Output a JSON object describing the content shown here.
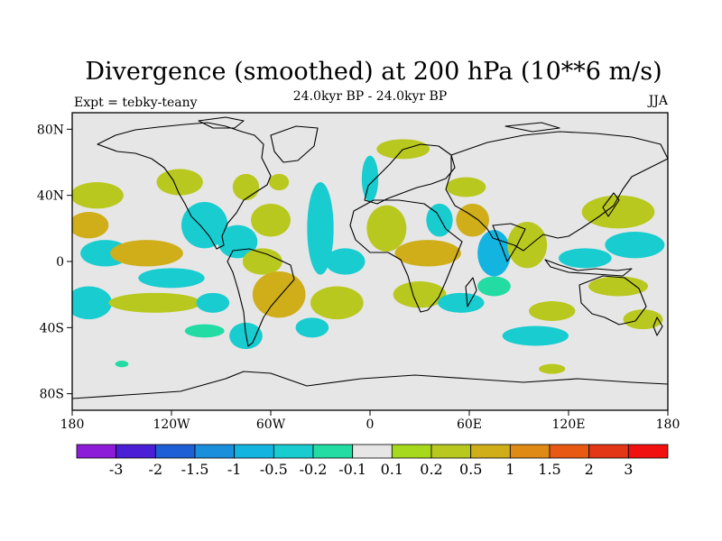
{
  "chart_data": {
    "type": "heatmap",
    "title": "Divergence (smoothed) at 200 hPa (10**6 m/s)",
    "left_label": "Expt = tebky-teany",
    "center_label": "24.0kyr BP - 24.0kyr BP",
    "right_label": "JJA",
    "x_ticks": [
      "180",
      "120W",
      "60W",
      "0",
      "60E",
      "120E",
      "180"
    ],
    "x_tick_values": [
      -180,
      -120,
      -60,
      0,
      60,
      120,
      180
    ],
    "y_ticks": [
      "80N",
      "40N",
      "0",
      "40S",
      "80S"
    ],
    "y_tick_values": [
      80,
      40,
      0,
      -40,
      -80
    ],
    "xlim": [
      -180,
      180
    ],
    "ylim": [
      -90,
      90
    ],
    "colorbar": {
      "levels": [
        "-3",
        "-2",
        "-1.5",
        "-1",
        "-0.5",
        "-0.2",
        "-0.1",
        "0.1",
        "0.2",
        "0.5",
        "1",
        "1.5",
        "2",
        "3"
      ],
      "colors": [
        "#8c1cd8",
        "#4a1fd6",
        "#1f5fd6",
        "#1a8fdc",
        "#14b4e0",
        "#18ccd0",
        "#22dca4",
        "#e6e6e6",
        "#a6d81c",
        "#b9c81e",
        "#cfae1a",
        "#e08a16",
        "#e85a14",
        "#e23616",
        "#f01010"
      ]
    },
    "regions": [
      {
        "lon": -115,
        "lat": 48,
        "rx": 14,
        "ry": 8,
        "value": 0.3
      },
      {
        "lon": -75,
        "lat": 45,
        "rx": 8,
        "ry": 8,
        "value": 0.3
      },
      {
        "lon": -55,
        "lat": 48,
        "rx": 6,
        "ry": 5,
        "value": 0.3
      },
      {
        "lon": 20,
        "lat": 68,
        "rx": 16,
        "ry": 6,
        "value": 0.2
      },
      {
        "lon": 0,
        "lat": 50,
        "rx": 5,
        "ry": 14,
        "value": -0.3
      },
      {
        "lon": 58,
        "lat": 45,
        "rx": 12,
        "ry": 6,
        "value": 0.3
      },
      {
        "lon": 42,
        "lat": 25,
        "rx": 8,
        "ry": 10,
        "value": -0.3
      },
      {
        "lon": -165,
        "lat": 40,
        "rx": 16,
        "ry": 8,
        "value": 0.3
      },
      {
        "lon": -170,
        "lat": 22,
        "rx": 12,
        "ry": 8,
        "value": 0.5
      },
      {
        "lon": -160,
        "lat": 5,
        "rx": 15,
        "ry": 8,
        "value": -0.3
      },
      {
        "lon": -170,
        "lat": -25,
        "rx": 14,
        "ry": 10,
        "value": -0.3
      },
      {
        "lon": -135,
        "lat": 5,
        "rx": 22,
        "ry": 8,
        "value": 0.7
      },
      {
        "lon": -120,
        "lat": -10,
        "rx": 20,
        "ry": 6,
        "value": -0.5
      },
      {
        "lon": -130,
        "lat": -25,
        "rx": 28,
        "ry": 6,
        "value": 0.3
      },
      {
        "lon": -100,
        "lat": 22,
        "rx": 14,
        "ry": 14,
        "value": -0.3
      },
      {
        "lon": -95,
        "lat": -25,
        "rx": 10,
        "ry": 6,
        "value": -0.3
      },
      {
        "lon": -80,
        "lat": 12,
        "rx": 12,
        "ry": 10,
        "value": -0.3
      },
      {
        "lon": -60,
        "lat": 25,
        "rx": 12,
        "ry": 10,
        "value": 0.3
      },
      {
        "lon": -65,
        "lat": 0,
        "rx": 12,
        "ry": 8,
        "value": 0.3
      },
      {
        "lon": -55,
        "lat": -20,
        "rx": 16,
        "ry": 14,
        "value": 0.6
      },
      {
        "lon": -75,
        "lat": -45,
        "rx": 10,
        "ry": 8,
        "value": -0.3
      },
      {
        "lon": -30,
        "lat": 20,
        "rx": 8,
        "ry": 28,
        "value": -0.3
      },
      {
        "lon": -15,
        "lat": 0,
        "rx": 12,
        "ry": 8,
        "value": -0.4
      },
      {
        "lon": -20,
        "lat": -25,
        "rx": 16,
        "ry": 10,
        "value": 0.3
      },
      {
        "lon": -35,
        "lat": -40,
        "rx": 10,
        "ry": 6,
        "value": -0.3
      },
      {
        "lon": 10,
        "lat": 20,
        "rx": 12,
        "ry": 14,
        "value": 0.3
      },
      {
        "lon": 35,
        "lat": 5,
        "rx": 20,
        "ry": 8,
        "value": 0.7
      },
      {
        "lon": 30,
        "lat": -20,
        "rx": 16,
        "ry": 8,
        "value": 0.3
      },
      {
        "lon": 55,
        "lat": -25,
        "rx": 14,
        "ry": 6,
        "value": -0.3
      },
      {
        "lon": 75,
        "lat": -15,
        "rx": 10,
        "ry": 6,
        "value": -0.2
      },
      {
        "lon": 75,
        "lat": 5,
        "rx": 10,
        "ry": 14,
        "value": -0.6
      },
      {
        "lon": 62,
        "lat": 25,
        "rx": 10,
        "ry": 10,
        "value": 0.5
      },
      {
        "lon": 95,
        "lat": 10,
        "rx": 12,
        "ry": 14,
        "value": 0.4
      },
      {
        "lon": 130,
        "lat": 2,
        "rx": 16,
        "ry": 6,
        "value": -0.4
      },
      {
        "lon": 150,
        "lat": 30,
        "rx": 22,
        "ry": 10,
        "value": 0.3
      },
      {
        "lon": 160,
        "lat": 10,
        "rx": 18,
        "ry": 8,
        "value": -0.3
      },
      {
        "lon": 150,
        "lat": -15,
        "rx": 18,
        "ry": 6,
        "value": 0.3
      },
      {
        "lon": 110,
        "lat": -30,
        "rx": 14,
        "ry": 6,
        "value": 0.3
      },
      {
        "lon": 100,
        "lat": -45,
        "rx": 20,
        "ry": 6,
        "value": -0.3
      },
      {
        "lon": 165,
        "lat": -35,
        "rx": 12,
        "ry": 6,
        "value": 0.3
      },
      {
        "lon": 110,
        "lat": -65,
        "rx": 8,
        "ry": 3,
        "value": 0.2
      },
      {
        "lon": -150,
        "lat": -62,
        "rx": 4,
        "ry": 2,
        "value": -0.2
      },
      {
        "lon": -100,
        "lat": -42,
        "rx": 12,
        "ry": 4,
        "value": -0.2
      }
    ]
  }
}
